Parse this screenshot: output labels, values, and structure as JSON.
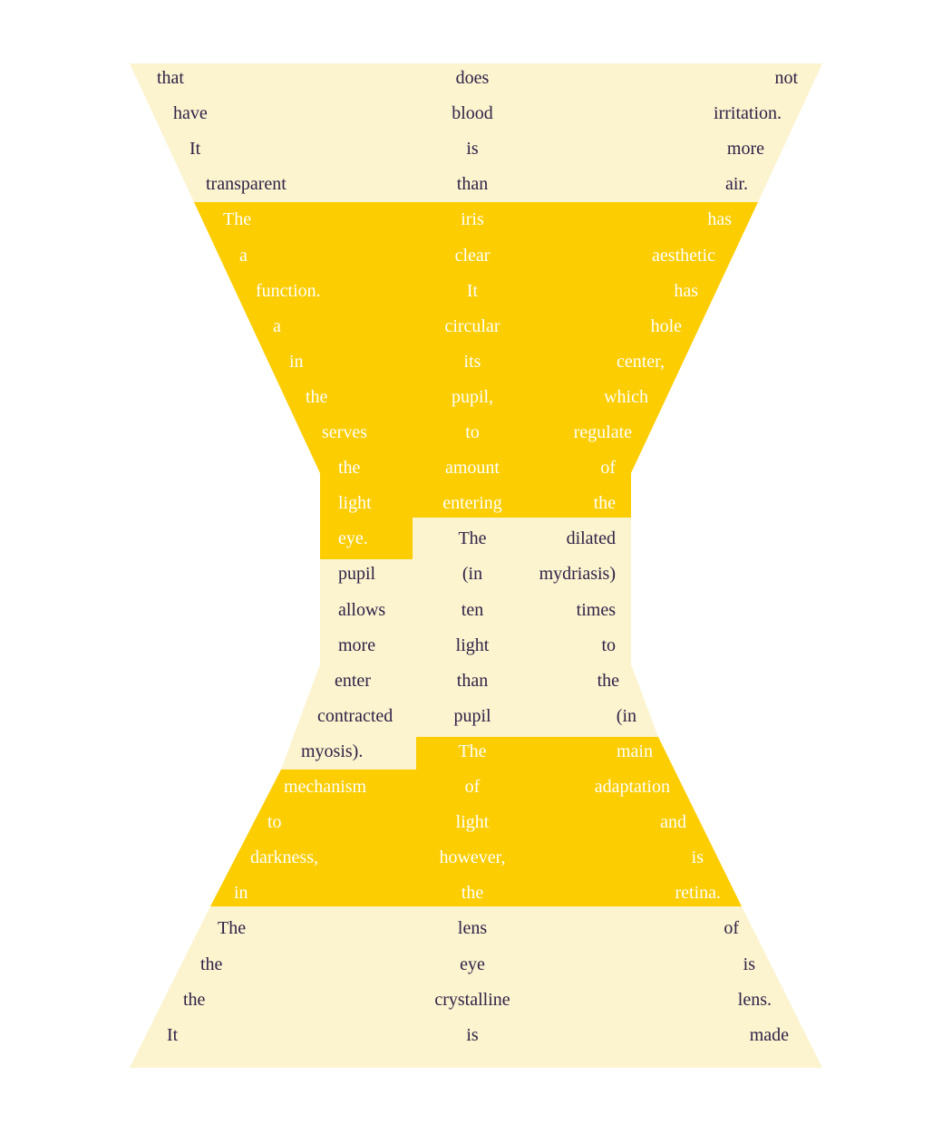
{
  "colors": {
    "pale": "#fcf3cf",
    "gold": "#fccd00",
    "text_dark": "#2f2347",
    "text_light": "#ffffff",
    "background": "#ffffff"
  },
  "poem": {
    "rows": [
      [
        "that",
        "does",
        "not"
      ],
      [
        "have",
        "blood",
        "irritation."
      ],
      [
        "It",
        "is",
        "more"
      ],
      [
        "transparent",
        "than",
        "air."
      ],
      [
        "The",
        "iris",
        "has"
      ],
      [
        "a",
        "clear",
        "aesthetic"
      ],
      [
        "function.",
        "It",
        "has"
      ],
      [
        "a",
        "circular",
        "hole"
      ],
      [
        "in",
        "its",
        "center,"
      ],
      [
        "the",
        "pupil,",
        "which"
      ],
      [
        "serves",
        "to",
        "regulate"
      ],
      [
        "the",
        "amount",
        "of"
      ],
      [
        "light",
        "entering",
        "the"
      ],
      [
        "eye.",
        "The",
        "dilated"
      ],
      [
        "pupil",
        "(in",
        "mydriasis)"
      ],
      [
        "allows",
        "ten",
        "times"
      ],
      [
        "more",
        "light",
        "to"
      ],
      [
        "enter",
        "than",
        "the"
      ],
      [
        "contracted",
        "pupil",
        "(in"
      ],
      [
        "myosis).",
        "The",
        "main"
      ],
      [
        "mechanism",
        "of",
        "adaptation"
      ],
      [
        "to",
        "light",
        "and"
      ],
      [
        "darkness,",
        "however,",
        "is"
      ],
      [
        "in",
        "the",
        "retina."
      ],
      [
        "The",
        "lens",
        "of"
      ],
      [
        "the",
        "eye",
        "is"
      ],
      [
        "the",
        "crystalline",
        "lens."
      ],
      [
        "It",
        "is",
        "made"
      ]
    ]
  }
}
